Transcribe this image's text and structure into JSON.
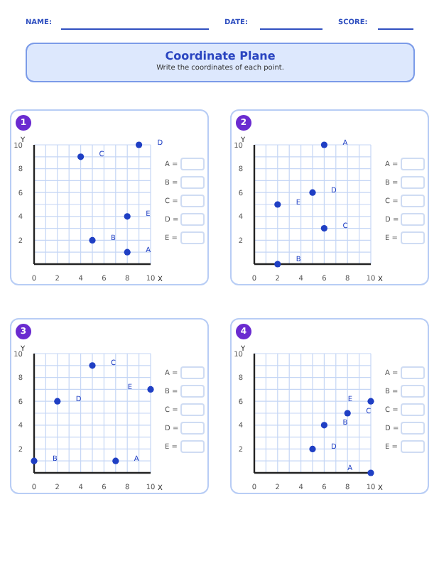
{
  "chart_data": [
    {
      "type": "other",
      "title": "Coordinate Plane",
      "subtitle": "Write the coordinates of each point.",
      "annotations": [
        "NAME:",
        "DATE:",
        "SCORE:"
      ]
    },
    {
      "type": "scatter",
      "title": "1",
      "xlabel": "X",
      "ylabel": "Y",
      "x": [
        8,
        5,
        4,
        9,
        8
      ],
      "values": [
        1,
        2,
        9,
        10,
        4
      ],
      "color": "#1f3fc4",
      "marker": "circle",
      "grid": true,
      "xlim": [
        0,
        10
      ],
      "ylim": [
        0,
        10
      ],
      "xticks": [
        0,
        {
          "value": 1,
          "label": null
        },
        2,
        {
          "value": 3,
          "label": null
        },
        4,
        {
          "value": 5,
          "label": null
        },
        6,
        {
          "value": 7,
          "label": null
        },
        8,
        {
          "value": 9,
          "label": null
        },
        10
      ],
      "yticks": [
        {
          "value": 0,
          "label": null
        },
        {
          "value": 1,
          "label": null
        },
        2,
        {
          "value": 3,
          "label": null
        },
        4,
        {
          "value": 5,
          "label": null
        },
        6,
        {
          "value": 7,
          "label": null
        },
        8,
        {
          "value": 9,
          "label": null
        },
        10
      ],
      "annotations": [
        {
          "text": "A",
          "x": 8,
          "y": 1
        },
        {
          "text": "B",
          "x": 5,
          "y": 2
        },
        {
          "text": "C",
          "x": 4,
          "y": 9
        },
        {
          "text": "D",
          "x": 9,
          "y": 10
        },
        {
          "text": "E",
          "x": 8,
          "y": 4
        },
        "A =",
        "B =",
        "C =",
        "D =",
        "E ="
      ]
    },
    {
      "type": "scatter",
      "title": "2",
      "xlabel": "X",
      "ylabel": "Y",
      "x": [
        6,
        2,
        6,
        5,
        2
      ],
      "values": [
        10,
        0,
        3,
        6,
        5
      ],
      "color": "#1f3fc4",
      "marker": "circle",
      "grid": true,
      "xlim": [
        0,
        10
      ],
      "ylim": [
        0,
        10
      ],
      "xticks": [
        0,
        {
          "value": 1,
          "label": null
        },
        2,
        {
          "value": 3,
          "label": null
        },
        4,
        {
          "value": 5,
          "label": null
        },
        6,
        {
          "value": 7,
          "label": null
        },
        8,
        {
          "value": 9,
          "label": null
        },
        10
      ],
      "yticks": [
        {
          "value": 0,
          "label": null
        },
        {
          "value": 1,
          "label": null
        },
        2,
        {
          "value": 3,
          "label": null
        },
        4,
        {
          "value": 5,
          "label": null
        },
        6,
        {
          "value": 7,
          "label": null
        },
        8,
        {
          "value": 9,
          "label": null
        },
        10
      ],
      "annotations": [
        {
          "text": "A",
          "x": 6,
          "y": 10
        },
        {
          "text": "B",
          "x": 2,
          "y": 0
        },
        {
          "text": "C",
          "x": 6,
          "y": 3
        },
        {
          "text": "D",
          "x": 5,
          "y": 6
        },
        {
          "text": "E",
          "x": 2,
          "y": 5
        },
        "A =",
        "B =",
        "C =",
        "D =",
        "E ="
      ]
    },
    {
      "type": "scatter",
      "title": "3",
      "xlabel": "X",
      "ylabel": "Y",
      "x": [
        7,
        0,
        5,
        2,
        10
      ],
      "values": [
        1,
        1,
        9,
        6,
        7
      ],
      "color": "#1f3fc4",
      "marker": "circle",
      "grid": true,
      "xlim": [
        0,
        10
      ],
      "ylim": [
        0,
        10
      ],
      "xticks": [
        0,
        {
          "value": 1,
          "label": null
        },
        2,
        {
          "value": 3,
          "label": null
        },
        4,
        {
          "value": 5,
          "label": null
        },
        6,
        {
          "value": 7,
          "label": null
        },
        8,
        {
          "value": 9,
          "label": null
        },
        10
      ],
      "yticks": [
        {
          "value": 0,
          "label": null
        },
        {
          "value": 1,
          "label": null
        },
        2,
        {
          "value": 3,
          "label": null
        },
        4,
        {
          "value": 5,
          "label": null
        },
        6,
        {
          "value": 7,
          "label": null
        },
        8,
        {
          "value": 9,
          "label": null
        },
        10
      ],
      "annotations": [
        {
          "text": "A",
          "x": 7,
          "y": 1
        },
        {
          "text": "B",
          "x": 0,
          "y": 1
        },
        {
          "text": "C",
          "x": 5,
          "y": 9
        },
        {
          "text": "D",
          "x": 2,
          "y": 6
        },
        {
          "text": "E",
          "x": 10,
          "y": 7
        },
        "A =",
        "B =",
        "C =",
        "D =",
        "E ="
      ]
    },
    {
      "type": "scatter",
      "title": "4",
      "xlabel": "X",
      "ylabel": "Y",
      "x": [
        10,
        6,
        8,
        5,
        10
      ],
      "values": [
        0,
        4,
        5,
        2,
        6
      ],
      "color": "#1f3fc4",
      "marker": "circle",
      "grid": true,
      "xlim": [
        0,
        10
      ],
      "ylim": [
        0,
        10
      ],
      "xticks": [
        0,
        {
          "value": 1,
          "label": null
        },
        2,
        {
          "value": 3,
          "label": null
        },
        4,
        {
          "value": 5,
          "label": null
        },
        6,
        {
          "value": 7,
          "label": null
        },
        8,
        {
          "value": 9,
          "label": null
        },
        10
      ],
      "yticks": [
        {
          "value": 0,
          "label": null
        },
        {
          "value": 1,
          "label": null
        },
        2,
        {
          "value": 3,
          "label": null
        },
        4,
        {
          "value": 5,
          "label": null
        },
        6,
        {
          "value": 7,
          "label": null
        },
        8,
        {
          "value": 9,
          "label": null
        },
        10
      ],
      "annotations": [
        {
          "text": "A",
          "x": 10,
          "y": 0
        },
        {
          "text": "B",
          "x": 6,
          "y": 4
        },
        {
          "text": "C",
          "x": 8,
          "y": 5
        },
        {
          "text": "D",
          "x": 5,
          "y": 2
        },
        {
          "text": "E",
          "x": 10,
          "y": 6
        },
        "A =",
        "B =",
        "C =",
        "D =",
        "E ="
      ]
    }
  ]
}
